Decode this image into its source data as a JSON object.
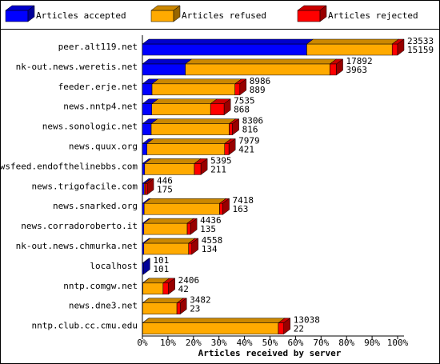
{
  "chart_data": {
    "type": "bar3d",
    "xlabel": "Articles received by server",
    "categories": [
      "peer.alt119.net",
      "nk-out.news.weretis.net",
      "feeder.erje.net",
      "news.nntp4.net",
      "news.sonologic.net",
      "news.quux.org",
      "newsfeed.endofthelinebbs.com",
      "news.trigofacile.com",
      "news.snarked.org",
      "news.corradoroberto.it",
      "nk-out.news.chmurka.net",
      "localhost",
      "nntp.comgw.net",
      "news.dne3.net",
      "nntp.club.cc.cmu.edu"
    ],
    "totals": [
      23533,
      17892,
      8986,
      7535,
      8306,
      7979,
      5395,
      446,
      7418,
      4436,
      4558,
      101,
      2406,
      3482,
      13038
    ],
    "series": [
      {
        "name": "Articles accepted",
        "color": "#0000ff",
        "values": [
          15159,
          3963,
          889,
          868,
          816,
          421,
          211,
          175,
          163,
          135,
          134,
          101,
          42,
          23,
          22
        ]
      },
      {
        "name": "Articles refused",
        "color": "#ffaa00",
        "values": [
          7874,
          13329,
          7647,
          5417,
          7190,
          7158,
          4584,
          71,
          6955,
          4001,
          4124,
          0,
          1864,
          3159,
          12516
        ]
      },
      {
        "name": "Articles rejected",
        "color": "#ff0000",
        "values": [
          500,
          600,
          450,
          1250,
          300,
          400,
          600,
          200,
          300,
          300,
          300,
          0,
          500,
          300,
          500
        ]
      }
    ],
    "xlim": [
      0,
      23533
    ],
    "xticks": [
      {
        "value": 0,
        "label": "0%"
      },
      {
        "value": 2353.3,
        "label": "10%"
      },
      {
        "value": 4706.6,
        "label": "20%"
      },
      {
        "value": 7059.9,
        "label": "30%"
      },
      {
        "value": 9413.2,
        "label": "40%"
      },
      {
        "value": 11766.5,
        "label": "50%"
      },
      {
        "value": 14119.8,
        "label": "60%"
      },
      {
        "value": 16473.1,
        "label": "70%"
      },
      {
        "value": 18826.4,
        "label": "80%"
      },
      {
        "value": 21179.7,
        "label": "90%"
      },
      {
        "value": 23533,
        "label": "100%"
      }
    ]
  }
}
